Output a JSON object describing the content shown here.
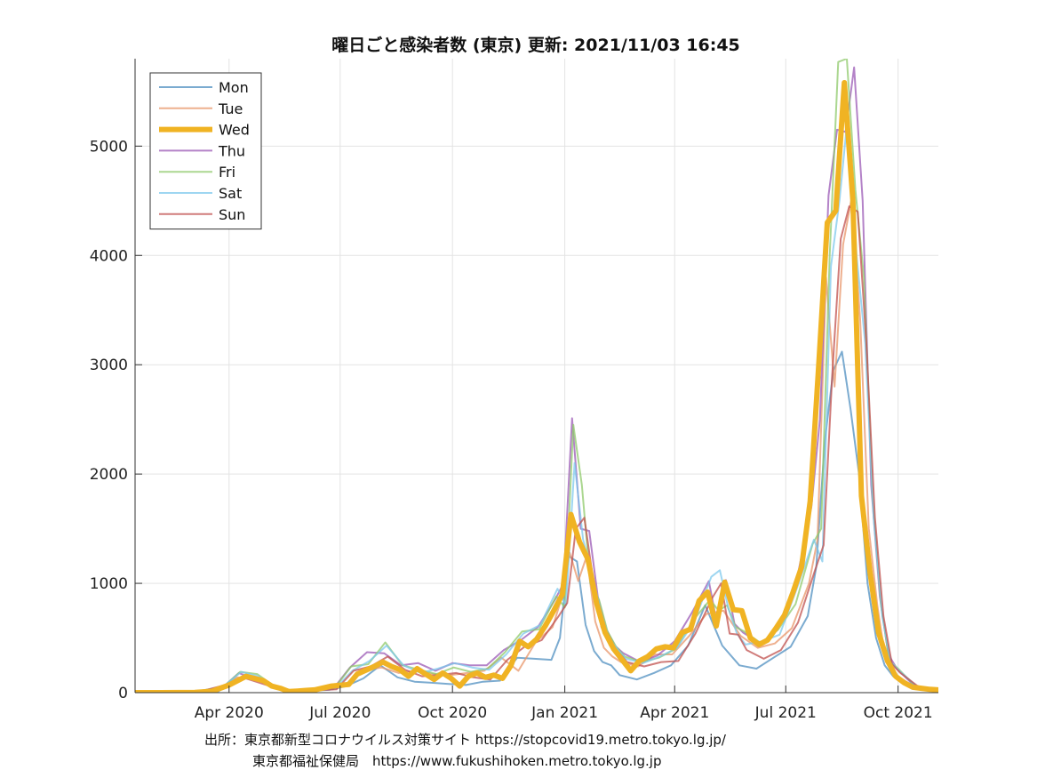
{
  "chart_data": {
    "type": "line",
    "title": "曜日ごと感染者数 (東京)   更新: 2021/11/03 16:45",
    "xlabel": "",
    "ylabel": "",
    "xlim": [
      "2020-01-15",
      "2021-11-03"
    ],
    "ylim": [
      0,
      5800
    ],
    "yticks": [
      0,
      1000,
      2000,
      3000,
      4000,
      5000
    ],
    "xticks": [
      {
        "date": "2020-04-01",
        "label": "Apr 2020"
      },
      {
        "date": "2020-07-01",
        "label": "Jul 2020"
      },
      {
        "date": "2020-10-01",
        "label": "Oct 2020"
      },
      {
        "date": "2021-01-01",
        "label": "Jan 2021"
      },
      {
        "date": "2021-04-01",
        "label": "Apr 2021"
      },
      {
        "date": "2021-07-01",
        "label": "Jul 2021"
      },
      {
        "date": "2021-10-01",
        "label": "Oct 2021"
      }
    ],
    "grid": true,
    "legend_position": "top-left",
    "series": [
      {
        "name": "Mon",
        "color": "#4f8fc0",
        "width": 2,
        "opacity": 0.75,
        "x": [
          "2020-01-15",
          "2020-03-01",
          "2020-03-23",
          "2020-04-06",
          "2020-04-20",
          "2020-05-04",
          "2020-05-18",
          "2020-06-01",
          "2020-06-22",
          "2020-07-06",
          "2020-07-20",
          "2020-08-03",
          "2020-08-17",
          "2020-08-31",
          "2020-09-14",
          "2020-09-28",
          "2020-10-12",
          "2020-10-26",
          "2020-11-09",
          "2020-11-23",
          "2020-12-07",
          "2020-12-21",
          "2020-12-28",
          "2021-01-04",
          "2021-01-11",
          "2021-01-18",
          "2021-01-25",
          "2021-02-01",
          "2021-02-08",
          "2021-02-15",
          "2021-03-01",
          "2021-03-15",
          "2021-03-29",
          "2021-04-12",
          "2021-04-26",
          "2021-05-10",
          "2021-05-24",
          "2021-06-07",
          "2021-06-21",
          "2021-07-05",
          "2021-07-19",
          "2021-07-26",
          "2021-08-02",
          "2021-08-09",
          "2021-08-16",
          "2021-08-23",
          "2021-08-30",
          "2021-09-06",
          "2021-09-13",
          "2021-09-20",
          "2021-09-27",
          "2021-10-11",
          "2021-10-25",
          "2021-11-01"
        ],
        "y": [
          0,
          5,
          10,
          120,
          150,
          60,
          20,
          15,
          25,
          60,
          130,
          250,
          140,
          100,
          90,
          80,
          70,
          100,
          110,
          320,
          310,
          300,
          500,
          1250,
          1200,
          620,
          380,
          280,
          250,
          160,
          120,
          180,
          250,
          430,
          800,
          430,
          250,
          220,
          320,
          420,
          700,
          1150,
          2300,
          2950,
          3120,
          2600,
          2000,
          1000,
          500,
          250,
          150,
          60,
          35,
          25
        ]
      },
      {
        "name": "Tue",
        "color": "#e8956a",
        "width": 2,
        "opacity": 0.75,
        "x": [
          "2020-01-15",
          "2020-03-01",
          "2020-03-24",
          "2020-04-07",
          "2020-04-21",
          "2020-05-05",
          "2020-05-19",
          "2020-06-02",
          "2020-06-23",
          "2020-07-07",
          "2020-07-21",
          "2020-08-04",
          "2020-08-18",
          "2020-09-01",
          "2020-09-15",
          "2020-09-29",
          "2020-10-13",
          "2020-10-27",
          "2020-11-10",
          "2020-11-24",
          "2020-12-08",
          "2020-12-22",
          "2020-12-29",
          "2021-01-05",
          "2021-01-12",
          "2021-01-19",
          "2021-01-26",
          "2021-02-02",
          "2021-02-09",
          "2021-02-16",
          "2021-03-02",
          "2021-03-16",
          "2021-03-30",
          "2021-04-13",
          "2021-04-27",
          "2021-05-11",
          "2021-05-25",
          "2021-06-08",
          "2021-06-22",
          "2021-07-06",
          "2021-07-20",
          "2021-07-27",
          "2021-08-03",
          "2021-08-10",
          "2021-08-17",
          "2021-08-24",
          "2021-08-31",
          "2021-09-07",
          "2021-09-14",
          "2021-09-21",
          "2021-09-28",
          "2021-10-12",
          "2021-10-26",
          "2021-11-02"
        ],
        "y": [
          0,
          5,
          20,
          140,
          130,
          70,
          15,
          20,
          30,
          90,
          210,
          230,
          180,
          200,
          170,
          160,
          180,
          200,
          320,
          200,
          460,
          600,
          850,
          1280,
          1020,
          1250,
          650,
          410,
          330,
          280,
          240,
          350,
          350,
          520,
          720,
          750,
          520,
          410,
          450,
          590,
          1000,
          1400,
          3800,
          2800,
          4100,
          4530,
          3400,
          1500,
          800,
          280,
          170,
          70,
          40,
          30
        ]
      },
      {
        "name": "Thu",
        "color": "#9b59b6",
        "width": 2,
        "opacity": 0.75,
        "x": [
          "2020-01-15",
          "2020-03-05",
          "2020-03-26",
          "2020-04-09",
          "2020-04-23",
          "2020-05-07",
          "2020-05-21",
          "2020-06-04",
          "2020-06-25",
          "2020-07-09",
          "2020-07-23",
          "2020-08-06",
          "2020-08-20",
          "2020-09-03",
          "2020-09-17",
          "2020-10-01",
          "2020-10-15",
          "2020-10-29",
          "2020-11-12",
          "2020-11-26",
          "2020-12-10",
          "2020-12-24",
          "2020-12-31",
          "2021-01-07",
          "2021-01-14",
          "2021-01-21",
          "2021-01-28",
          "2021-02-04",
          "2021-02-11",
          "2021-02-18",
          "2021-03-04",
          "2021-03-18",
          "2021-04-01",
          "2021-04-15",
          "2021-04-29",
          "2021-05-06",
          "2021-05-13",
          "2021-05-20",
          "2021-05-27",
          "2021-06-10",
          "2021-06-24",
          "2021-07-08",
          "2021-07-22",
          "2021-07-29",
          "2021-08-05",
          "2021-08-12",
          "2021-08-19",
          "2021-08-26",
          "2021-09-02",
          "2021-09-09",
          "2021-09-16",
          "2021-09-23",
          "2021-09-30",
          "2021-10-14",
          "2021-10-28"
        ],
        "y": [
          0,
          10,
          40,
          180,
          120,
          60,
          10,
          25,
          30,
          230,
          370,
          360,
          250,
          270,
          200,
          270,
          250,
          250,
          390,
          480,
          600,
          850,
          1000,
          2510,
          1500,
          1480,
          880,
          580,
          430,
          360,
          280,
          340,
          470,
          730,
          1020,
          610,
          1030,
          630,
          550,
          450,
          570,
          920,
          1700,
          2500,
          4550,
          5150,
          5130,
          5720,
          4500,
          1900,
          880,
          350,
          220,
          65,
          35
        ]
      },
      {
        "name": "Fri",
        "color": "#8fc96b",
        "width": 2,
        "opacity": 0.75,
        "x": [
          "2020-01-15",
          "2020-03-06",
          "2020-03-27",
          "2020-04-10",
          "2020-04-24",
          "2020-05-08",
          "2020-05-22",
          "2020-06-05",
          "2020-06-26",
          "2020-07-10",
          "2020-07-24",
          "2020-08-07",
          "2020-08-21",
          "2020-09-04",
          "2020-09-18",
          "2020-10-02",
          "2020-10-16",
          "2020-10-30",
          "2020-11-13",
          "2020-11-27",
          "2020-12-11",
          "2020-12-25",
          "2021-01-01",
          "2021-01-08",
          "2021-01-15",
          "2021-01-22",
          "2021-01-29",
          "2021-02-05",
          "2021-02-12",
          "2021-02-19",
          "2021-03-05",
          "2021-03-19",
          "2021-04-02",
          "2021-04-16",
          "2021-04-30",
          "2021-05-07",
          "2021-05-14",
          "2021-05-21",
          "2021-05-28",
          "2021-06-11",
          "2021-06-25",
          "2021-07-09",
          "2021-07-23",
          "2021-07-30",
          "2021-08-06",
          "2021-08-13",
          "2021-08-20",
          "2021-08-27",
          "2021-09-03",
          "2021-09-10",
          "2021-09-17",
          "2021-09-24",
          "2021-10-01",
          "2021-10-15",
          "2021-10-29"
        ],
        "y": [
          0,
          15,
          50,
          190,
          170,
          60,
          20,
          25,
          35,
          240,
          260,
          460,
          250,
          210,
          170,
          230,
          190,
          220,
          370,
          560,
          580,
          880,
          780,
          2450,
          1900,
          1000,
          850,
          560,
          420,
          330,
          280,
          320,
          400,
          660,
          850,
          750,
          800,
          600,
          560,
          450,
          580,
          810,
          1360,
          1500,
          4000,
          5770,
          5800,
          4600,
          3800,
          1800,
          800,
          290,
          220,
          60,
          30
        ]
      },
      {
        "name": "Sat",
        "color": "#7dc8ec",
        "width": 2,
        "opacity": 0.75,
        "x": [
          "2020-01-15",
          "2020-03-07",
          "2020-03-28",
          "2020-04-11",
          "2020-04-25",
          "2020-05-09",
          "2020-05-23",
          "2020-06-06",
          "2020-06-27",
          "2020-07-11",
          "2020-07-25",
          "2020-08-08",
          "2020-08-22",
          "2020-09-05",
          "2020-09-19",
          "2020-10-03",
          "2020-10-17",
          "2020-10-31",
          "2020-11-14",
          "2020-11-28",
          "2020-12-12",
          "2020-12-26",
          "2021-01-02",
          "2021-01-09",
          "2021-01-16",
          "2021-01-23",
          "2021-01-30",
          "2021-02-06",
          "2021-02-13",
          "2021-02-20",
          "2021-03-06",
          "2021-03-20",
          "2021-04-03",
          "2021-04-17",
          "2021-05-01",
          "2021-05-08",
          "2021-05-15",
          "2021-05-22",
          "2021-05-29",
          "2021-06-12",
          "2021-06-26",
          "2021-07-10",
          "2021-07-24",
          "2021-07-31",
          "2021-08-07",
          "2021-08-14",
          "2021-08-21",
          "2021-08-28",
          "2021-09-04",
          "2021-09-11",
          "2021-09-18",
          "2021-09-25",
          "2021-10-02",
          "2021-10-16",
          "2021-10-30"
        ],
        "y": [
          0,
          10,
          60,
          190,
          150,
          40,
          20,
          25,
          40,
          200,
          290,
          430,
          250,
          180,
          220,
          270,
          230,
          210,
          350,
          540,
          620,
          950,
          800,
          2100,
          1400,
          1100,
          770,
          500,
          400,
          310,
          270,
          330,
          410,
          650,
          1060,
          1120,
          770,
          540,
          440,
          470,
          530,
          950,
          1400,
          1200,
          3900,
          4500,
          5300,
          4000,
          3200,
          1600,
          700,
          280,
          200,
          60,
          30
        ]
      },
      {
        "name": "Sun",
        "color": "#c0504d",
        "width": 2,
        "opacity": 0.75,
        "x": [
          "2020-01-15",
          "2020-03-08",
          "2020-03-29",
          "2020-04-12",
          "2020-04-26",
          "2020-05-10",
          "2020-05-24",
          "2020-06-07",
          "2020-06-28",
          "2020-07-12",
          "2020-07-26",
          "2020-08-09",
          "2020-08-23",
          "2020-09-06",
          "2020-09-20",
          "2020-10-04",
          "2020-10-18",
          "2020-11-01",
          "2020-11-15",
          "2020-11-29",
          "2020-12-13",
          "2020-12-27",
          "2021-01-03",
          "2021-01-10",
          "2021-01-17",
          "2021-01-24",
          "2021-01-31",
          "2021-02-07",
          "2021-02-14",
          "2021-02-21",
          "2021-03-07",
          "2021-03-21",
          "2021-04-04",
          "2021-04-18",
          "2021-05-02",
          "2021-05-09",
          "2021-05-16",
          "2021-05-23",
          "2021-05-30",
          "2021-06-13",
          "2021-06-27",
          "2021-07-11",
          "2021-07-25",
          "2021-08-01",
          "2021-08-08",
          "2021-08-15",
          "2021-08-22",
          "2021-08-29",
          "2021-09-05",
          "2021-09-12",
          "2021-09-19",
          "2021-09-26",
          "2021-10-03",
          "2021-10-17",
          "2021-10-31"
        ],
        "y": [
          0,
          10,
          70,
          140,
          90,
          40,
          15,
          20,
          30,
          200,
          240,
          330,
          210,
          150,
          160,
          180,
          140,
          120,
          300,
          420,
          480,
          700,
          820,
          1500,
          1600,
          1050,
          600,
          430,
          370,
          280,
          240,
          280,
          290,
          540,
          870,
          1000,
          540,
          530,
          390,
          310,
          390,
          640,
          1120,
          1350,
          2900,
          4150,
          4450,
          4400,
          3200,
          1600,
          700,
          260,
          180,
          60,
          30
        ]
      },
      {
        "name": "Wed",
        "color": "#f0b323",
        "width": 6,
        "opacity": 1,
        "x": [
          "2020-01-15",
          "2020-02-05",
          "2020-03-04",
          "2020-03-18",
          "2020-04-01",
          "2020-04-15",
          "2020-04-22",
          "2020-04-29",
          "2020-05-06",
          "2020-05-13",
          "2020-05-20",
          "2020-05-27",
          "2020-06-03",
          "2020-06-10",
          "2020-06-24",
          "2020-07-08",
          "2020-07-15",
          "2020-07-29",
          "2020-08-05",
          "2020-08-12",
          "2020-08-19",
          "2020-08-26",
          "2020-09-02",
          "2020-09-09",
          "2020-09-16",
          "2020-09-23",
          "2020-09-30",
          "2020-10-07",
          "2020-10-14",
          "2020-10-21",
          "2020-10-28",
          "2020-11-04",
          "2020-11-11",
          "2020-11-18",
          "2020-11-25",
          "2020-12-02",
          "2020-12-09",
          "2020-12-16",
          "2020-12-23",
          "2020-12-30",
          "2021-01-06",
          "2021-01-13",
          "2021-01-20",
          "2021-01-27",
          "2021-02-03",
          "2021-02-10",
          "2021-02-17",
          "2021-02-24",
          "2021-03-03",
          "2021-03-10",
          "2021-03-17",
          "2021-03-24",
          "2021-03-31",
          "2021-04-07",
          "2021-04-14",
          "2021-04-21",
          "2021-04-28",
          "2021-05-05",
          "2021-05-12",
          "2021-05-19",
          "2021-05-26",
          "2021-06-02",
          "2021-06-09",
          "2021-06-16",
          "2021-06-23",
          "2021-06-30",
          "2021-07-07",
          "2021-07-14",
          "2021-07-21",
          "2021-07-28",
          "2021-08-04",
          "2021-08-11",
          "2021-08-18",
          "2021-08-25",
          "2021-09-01",
          "2021-09-08",
          "2021-09-15",
          "2021-09-22",
          "2021-09-29",
          "2021-10-06",
          "2021-10-13",
          "2021-10-20",
          "2021-10-27",
          "2021-11-03"
        ],
        "y": [
          0,
          0,
          2,
          12,
          70,
          150,
          130,
          110,
          60,
          40,
          10,
          15,
          20,
          25,
          60,
          75,
          170,
          240,
          280,
          240,
          210,
          150,
          220,
          170,
          120,
          180,
          130,
          60,
          150,
          180,
          140,
          160,
          130,
          250,
          470,
          420,
          490,
          610,
          750,
          900,
          1630,
          1380,
          1220,
          820,
          550,
          400,
          300,
          200,
          290,
          330,
          400,
          420,
          410,
          550,
          580,
          840,
          920,
          610,
          1010,
          760,
          750,
          500,
          440,
          480,
          590,
          710,
          920,
          1150,
          1750,
          3000,
          4300,
          4410,
          5580,
          4500,
          1800,
          1100,
          550,
          300,
          150,
          90,
          50,
          40,
          30,
          25
        ]
      }
    ]
  },
  "source_label": "出所：東京都新型コロナウイルス対策サイト https://stopcovid19.metro.tokyo.lg.jp/",
  "source_label_2": "東京都福祉保健局　https://www.fukushihoken.metro.tokyo.lg.jp"
}
